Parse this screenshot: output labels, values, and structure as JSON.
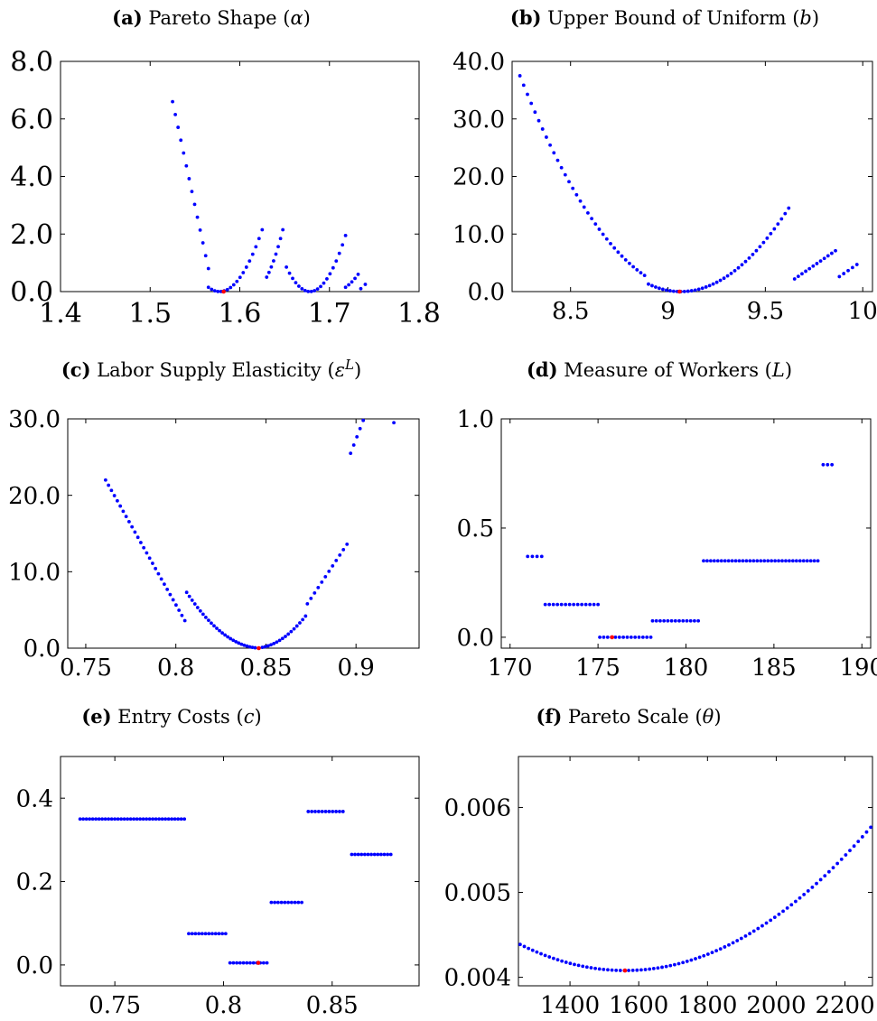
{
  "colors": {
    "series": "#0000ff",
    "minimum": "#ff0000",
    "axis": "#000000"
  },
  "chart_data": [
    {
      "type": "scatter",
      "panel_label": "(a)",
      "title_text": "Pareto Shape",
      "symbol": "α",
      "xlim": [
        1.4,
        1.8
      ],
      "ylim": [
        0,
        8
      ],
      "xticks": [
        1.4,
        1.5,
        1.6,
        1.7,
        1.8
      ],
      "xtick_labels": [
        "1.4",
        "1.5",
        "1.6",
        "1.7",
        "1.8"
      ],
      "yticks": [
        0,
        2,
        4,
        6,
        8
      ],
      "ytick_labels": [
        "0.0",
        "2.0",
        "4.0",
        "6.0",
        "8.0"
      ],
      "segments": [
        {
          "kind": "linear",
          "x": [
            1.525,
            1.565
          ],
          "y": [
            6.6,
            0.8
          ],
          "n": 14
        },
        {
          "kind": "parabola",
          "x": [
            1.565,
            1.625
          ],
          "vertex": [
            1.582,
            0.0
          ],
          "y0": 0.15,
          "y1": 2.15,
          "n": 18
        },
        {
          "kind": "parabola",
          "x": [
            1.63,
            1.648
          ],
          "vertex": [
            1.6,
            0.0
          ],
          "y0": 0.5,
          "y1": 2.15,
          "n": 8
        },
        {
          "kind": "parabola",
          "x": [
            1.652,
            1.718
          ],
          "vertex": [
            1.675,
            0.0
          ],
          "y0": 0.85,
          "y1": 1.95,
          "n": 20
        },
        {
          "kind": "parabola",
          "x": [
            1.718,
            1.732
          ],
          "vertex": [
            1.7,
            0.0
          ],
          "y0": 0.15,
          "y1": 0.6,
          "n": 5
        },
        {
          "kind": "linear",
          "x": [
            1.735,
            1.74
          ],
          "y": [
            0.1,
            0.25
          ],
          "n": 2
        }
      ],
      "minimum": [
        1.582,
        0.0
      ]
    },
    {
      "type": "scatter",
      "panel_label": "(b)",
      "title_text": "Upper Bound of Uniform",
      "symbol": "b",
      "xlim": [
        8.2,
        10.05
      ],
      "ylim": [
        0,
        40
      ],
      "xticks": [
        8.5,
        9,
        9.5,
        10
      ],
      "xtick_labels": [
        "8.5",
        "9",
        "9.5",
        "10"
      ],
      "yticks": [
        0,
        10,
        20,
        30,
        40
      ],
      "ytick_labels": [
        "0.0",
        "10.0",
        "20.0",
        "30.0",
        "40.0"
      ],
      "segments": [
        {
          "kind": "parabola",
          "x": [
            8.24,
            8.88
          ],
          "vertex": [
            9.05,
            0.0
          ],
          "y0": 37.5,
          "y1": 2.8,
          "n": 34
        },
        {
          "kind": "parabola",
          "x": [
            8.9,
            9.62
          ],
          "vertex": [
            9.06,
            0.0
          ],
          "y0": 1.3,
          "y1": 14.5,
          "n": 40
        },
        {
          "kind": "linear",
          "x": [
            9.65,
            9.86
          ],
          "y": [
            2.2,
            7.1
          ],
          "n": 12
        },
        {
          "kind": "linear",
          "x": [
            9.88,
            9.97
          ],
          "y": [
            2.6,
            4.7
          ],
          "n": 5
        }
      ],
      "minimum": [
        9.06,
        0.0
      ]
    },
    {
      "type": "scatter",
      "panel_label": "(c)",
      "title_text": "Labor Supply Elasticity",
      "symbol": "ε",
      "superscript": "L",
      "xlim": [
        0.74,
        0.935
      ],
      "ylim": [
        0,
        30
      ],
      "xticks": [
        0.75,
        0.8,
        0.85,
        0.9
      ],
      "xtick_labels": [
        "0.75",
        "0.8",
        "0.85",
        "0.9"
      ],
      "yticks": [
        0,
        10,
        20,
        30
      ],
      "ytick_labels": [
        "0.0",
        "10.0",
        "20.0",
        "30.0"
      ],
      "segments": [
        {
          "kind": "linear",
          "x": [
            0.761,
            0.805
          ],
          "y": [
            22.0,
            3.6
          ],
          "n": 28
        },
        {
          "kind": "parabola",
          "x": [
            0.806,
            0.844
          ],
          "vertex": [
            0.846,
            0.0
          ],
          "y0": 7.3,
          "y1": 0.05,
          "n": 26
        },
        {
          "kind": "parabola",
          "x": [
            0.848,
            0.872
          ],
          "vertex": [
            0.846,
            0.0
          ],
          "y0": 0.1,
          "y1": 4.2,
          "n": 16
        },
        {
          "kind": "linear",
          "x": [
            0.873,
            0.895
          ],
          "y": [
            5.8,
            13.6
          ],
          "n": 12
        },
        {
          "kind": "linear",
          "x": [
            0.897,
            0.904
          ],
          "y": [
            25.5,
            29.8
          ],
          "n": 5
        },
        {
          "kind": "linear",
          "x": [
            0.921,
            0.921
          ],
          "y": [
            29.5,
            29.5
          ],
          "n": 1
        }
      ],
      "minimum": [
        0.846,
        0.0
      ]
    },
    {
      "type": "scatter",
      "panel_label": "(d)",
      "title_text": "Measure of Workers",
      "symbol": "L",
      "xlim": [
        169.5,
        190.5
      ],
      "ylim": [
        -0.05,
        1.0
      ],
      "xticks": [
        170,
        175,
        180,
        185,
        190
      ],
      "xtick_labels": [
        "170",
        "175",
        "180",
        "185",
        "190"
      ],
      "yticks": [
        0,
        0.5,
        1.0
      ],
      "ytick_labels": [
        "0.0",
        "0.5",
        "1.0"
      ],
      "segments": [
        {
          "kind": "linear",
          "x": [
            171.0,
            171.8
          ],
          "y": [
            0.37,
            0.37
          ],
          "n": 4
        },
        {
          "kind": "linear",
          "x": [
            172.0,
            175.0
          ],
          "y": [
            0.15,
            0.15
          ],
          "n": 14
        },
        {
          "kind": "linear",
          "x": [
            175.1,
            178.0
          ],
          "y": [
            0.0,
            0.0
          ],
          "n": 14
        },
        {
          "kind": "linear",
          "x": [
            178.1,
            180.7
          ],
          "y": [
            0.075,
            0.075
          ],
          "n": 13
        },
        {
          "kind": "linear",
          "x": [
            181.0,
            187.5
          ],
          "y": [
            0.35,
            0.35
          ],
          "n": 33
        },
        {
          "kind": "linear",
          "x": [
            187.8,
            188.3
          ],
          "y": [
            0.79,
            0.79
          ],
          "n": 3
        }
      ],
      "minimum": [
        175.8,
        0.0
      ]
    },
    {
      "type": "scatter",
      "panel_label": "(e)",
      "title_text": "Entry Costs",
      "symbol": "c",
      "xlim": [
        0.725,
        0.89
      ],
      "ylim": [
        -0.05,
        0.5
      ],
      "xticks": [
        0.75,
        0.8,
        0.85
      ],
      "xtick_labels": [
        "0.75",
        "0.8",
        "0.85"
      ],
      "yticks": [
        0,
        0.2,
        0.4
      ],
      "ytick_labels": [
        "0.0",
        "0.2",
        "0.4"
      ],
      "segments": [
        {
          "kind": "linear",
          "x": [
            0.734,
            0.782
          ],
          "y": [
            0.35,
            0.35
          ],
          "n": 34
        },
        {
          "kind": "linear",
          "x": [
            0.784,
            0.801
          ],
          "y": [
            0.075,
            0.075
          ],
          "n": 12
        },
        {
          "kind": "linear",
          "x": [
            0.803,
            0.82
          ],
          "y": [
            0.005,
            0.005
          ],
          "n": 12
        },
        {
          "kind": "linear",
          "x": [
            0.822,
            0.836
          ],
          "y": [
            0.15,
            0.15
          ],
          "n": 10
        },
        {
          "kind": "linear",
          "x": [
            0.839,
            0.855
          ],
          "y": [
            0.368,
            0.368
          ],
          "n": 11
        },
        {
          "kind": "linear",
          "x": [
            0.859,
            0.877
          ],
          "y": [
            0.265,
            0.265
          ],
          "n": 13
        }
      ],
      "minimum": [
        0.816,
        0.005
      ]
    },
    {
      "type": "scatter",
      "panel_label": "(f)",
      "title_text": "Pareto Scale",
      "symbol": "θ",
      "xlim": [
        1250,
        2280
      ],
      "ylim": [
        0.0039,
        0.0066
      ],
      "xticks": [
        1400,
        1600,
        1800,
        2000,
        2200
      ],
      "xtick_labels": [
        "1400",
        "1600",
        "1800",
        "2000",
        "2200"
      ],
      "yticks": [
        0.004,
        0.005,
        0.006
      ],
      "ytick_labels": [
        "0.004",
        "0.005",
        "0.006"
      ],
      "segments": [
        {
          "kind": "quadratic",
          "x": [
            1255,
            2275
          ],
          "vertex": [
            1560,
            0.00408
          ],
          "coef": 3.3e-09,
          "n": 85
        }
      ],
      "minimum": [
        1560,
        0.00408
      ]
    }
  ]
}
